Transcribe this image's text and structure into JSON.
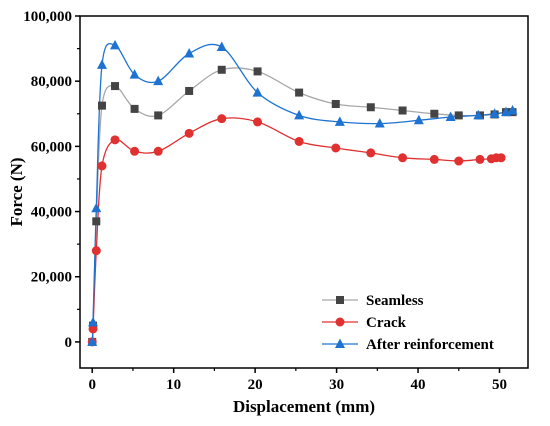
{
  "chart_data": {
    "type": "line",
    "xlabel": "Displacement (mm)",
    "ylabel": "Force (N)",
    "xlim": [
      -1.5,
      53.5
    ],
    "ylim": [
      -8000,
      100000
    ],
    "xticks": [
      0,
      10,
      20,
      30,
      40,
      50
    ],
    "yticks": [
      0,
      20000,
      40000,
      60000,
      80000,
      100000
    ],
    "ytick_labels": [
      "0",
      "20,000",
      "40,000",
      "60,000",
      "80,000",
      "100,000"
    ],
    "grid": false,
    "legend_position": "bottom-right",
    "series": [
      {
        "name": "Seamless",
        "marker": "square",
        "color": "#444444",
        "line_color": "#a8a8a8",
        "x": [
          0,
          0.1,
          0.5,
          1.2,
          2.8,
          5.2,
          8.1,
          11.9,
          15.9,
          20.3,
          25.4,
          29.9,
          34.2,
          38.1,
          42.0,
          45.0,
          47.6,
          49.4,
          50.8,
          51.6
        ],
        "y": [
          0,
          5000,
          37000,
          72500,
          78500,
          71500,
          69500,
          77000,
          83500,
          83000,
          76500,
          73000,
          72000,
          71000,
          70000,
          69500,
          69500,
          69800,
          70500,
          70500
        ]
      },
      {
        "name": "Crack",
        "marker": "circle",
        "color": "#e03030",
        "line_color": "#e03030",
        "x": [
          0,
          0.1,
          0.5,
          1.2,
          2.8,
          5.2,
          8.1,
          11.9,
          15.9,
          20.3,
          25.4,
          29.9,
          34.2,
          38.1,
          42.0,
          45.0,
          47.6,
          49.0,
          49.6,
          50.2
        ],
        "y": [
          0,
          4000,
          28000,
          54000,
          62000,
          58500,
          58500,
          64000,
          68500,
          67500,
          61500,
          59500,
          58000,
          56500,
          56000,
          55500,
          56000,
          56200,
          56500,
          56500
        ]
      },
      {
        "name": "After reinforcement",
        "marker": "triangle",
        "color": "#1e73d2",
        "line_color": "#1e73d2",
        "x": [
          0,
          0.1,
          0.5,
          1.2,
          2.8,
          5.2,
          8.1,
          11.9,
          15.9,
          20.3,
          25.4,
          30.4,
          35.3,
          40.1,
          44.0,
          47.4,
          49.4,
          50.8,
          51.6
        ],
        "y": [
          0,
          6000,
          41000,
          85000,
          91000,
          82000,
          80000,
          88500,
          90500,
          76500,
          69500,
          67500,
          67000,
          68000,
          69000,
          69500,
          70000,
          70500,
          71000
        ]
      }
    ]
  }
}
